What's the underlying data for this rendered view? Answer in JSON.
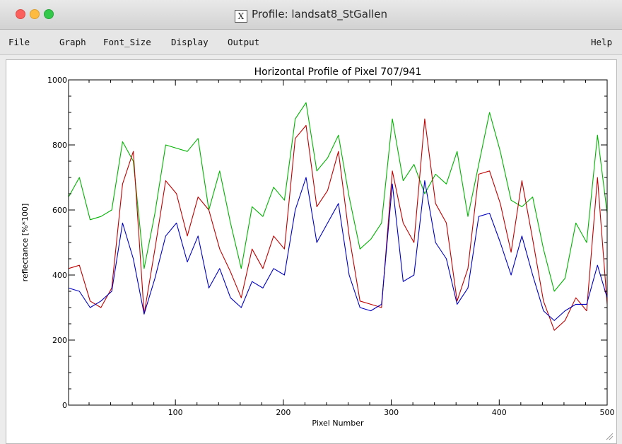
{
  "window": {
    "title": "Profile: landsat8_StGallen",
    "x_icon": "X"
  },
  "menu": {
    "file": "File",
    "graph": "Graph",
    "font_size": "Font_Size",
    "display": "Display",
    "output": "Output",
    "help": "Help"
  },
  "chart_data": {
    "type": "line",
    "title": "Horizontal Profile of Pixel 707/941",
    "xlabel": "Pixel Number",
    "ylabel": "reflectance [%*100]",
    "xlim": [
      1,
      500
    ],
    "ylim": [
      0,
      1000
    ],
    "xticks": [
      100,
      200,
      300,
      400,
      500
    ],
    "yticks": [
      0,
      200,
      400,
      600,
      800,
      1000
    ],
    "grid": false,
    "legend": "none",
    "x": [
      1,
      11,
      21,
      31,
      41,
      51,
      61,
      71,
      81,
      91,
      101,
      111,
      121,
      131,
      141,
      151,
      161,
      171,
      181,
      191,
      201,
      211,
      221,
      231,
      241,
      251,
      261,
      271,
      281,
      291,
      301,
      311,
      321,
      331,
      341,
      351,
      361,
      371,
      381,
      391,
      401,
      411,
      421,
      431,
      441,
      451,
      461,
      471,
      481,
      491,
      500
    ],
    "series": [
      {
        "color": "#00b400",
        "values": [
          640,
          700,
          570,
          580,
          600,
          810,
          750,
          420,
          590,
          800,
          790,
          780,
          820,
          600,
          720,
          560,
          420,
          610,
          580,
          670,
          630,
          880,
          930,
          720,
          760,
          830,
          640,
          480,
          510,
          560,
          880,
          690,
          740,
          650,
          710,
          680,
          780,
          580,
          740,
          900,
          780,
          630,
          610,
          640,
          480,
          350,
          390,
          560,
          500,
          830,
          590
        ]
      },
      {
        "color": "#c00000",
        "values": [
          420,
          430,
          320,
          300,
          360,
          680,
          780,
          280,
          480,
          690,
          650,
          520,
          640,
          600,
          480,
          410,
          330,
          480,
          420,
          520,
          480,
          820,
          860,
          610,
          660,
          780,
          520,
          320,
          310,
          300,
          720,
          560,
          500,
          880,
          620,
          560,
          320,
          420,
          710,
          720,
          620,
          470,
          690,
          510,
          320,
          230,
          260,
          330,
          290,
          700,
          310
        ]
      },
      {
        "color": "#0000c0",
        "values": [
          360,
          350,
          300,
          320,
          350,
          560,
          450,
          280,
          390,
          520,
          560,
          440,
          520,
          360,
          420,
          330,
          300,
          380,
          360,
          420,
          400,
          600,
          700,
          500,
          560,
          620,
          400,
          300,
          290,
          310,
          680,
          380,
          400,
          690,
          500,
          450,
          310,
          360,
          580,
          590,
          500,
          400,
          520,
          400,
          290,
          260,
          290,
          310,
          310,
          430,
          330
        ]
      }
    ]
  }
}
